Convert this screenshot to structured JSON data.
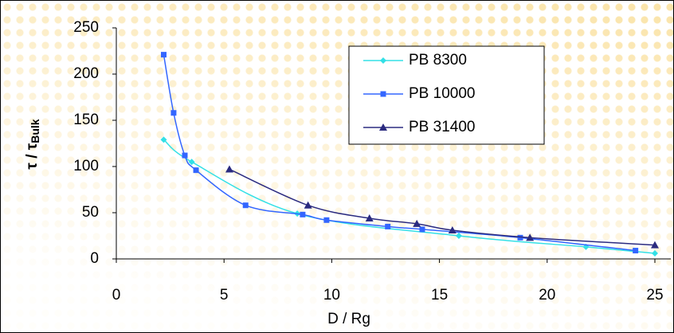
{
  "chart_data": {
    "type": "line",
    "x_label": "D / Rg",
    "y_label": "τ / τ",
    "y_label_sub": "Bulk",
    "xlim": [
      0,
      25
    ],
    "xticks": [
      0,
      5,
      10,
      15,
      20,
      25
    ],
    "ylim": [
      0,
      250
    ],
    "yticks": [
      0,
      50,
      100,
      150,
      200,
      250
    ],
    "legend": "upper right",
    "series": [
      {
        "name": "PB 8300",
        "color": "#33e0e6",
        "marker": "diamond",
        "x": [
          2.2,
          3.5,
          8.4,
          15.9,
          21.8,
          25
        ],
        "values": [
          129,
          105,
          49,
          25,
          13,
          6
        ]
      },
      {
        "name": "PB 10000",
        "color": "#3366ff",
        "marker": "square",
        "x": [
          2.2,
          2.66,
          3.18,
          3.7,
          6.0,
          8.65,
          9.76,
          12.6,
          14.2,
          18.75,
          24.1
        ],
        "values": [
          221,
          158,
          112,
          96,
          58,
          48,
          42,
          35,
          32,
          23,
          9
        ]
      },
      {
        "name": "PB 31400",
        "color": "#2b2b80",
        "marker": "triangle",
        "x": [
          5.25,
          8.9,
          11.75,
          13.95,
          15.6,
          19.2,
          25
        ],
        "values": [
          97,
          58,
          44,
          38,
          31,
          23,
          15
        ]
      }
    ]
  }
}
